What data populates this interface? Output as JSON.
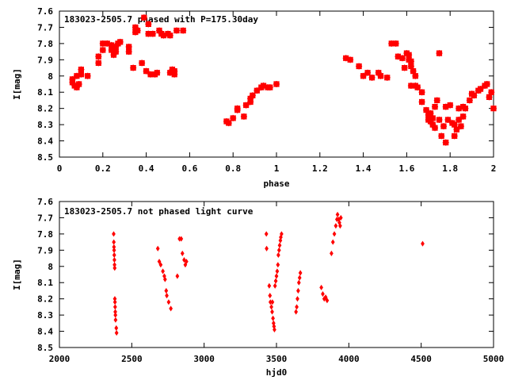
{
  "colors": {
    "points": "#ff0000",
    "axis": "#000000",
    "background": "#ffffff"
  },
  "chart_data": [
    {
      "type": "scatter",
      "title": "183023-2505.7 phased with P=175.30day",
      "xlabel": "phase",
      "ylabel": "I[mag]",
      "xlim": [
        0,
        2
      ],
      "ylim": [
        8.5,
        7.6
      ],
      "y_inverted": true,
      "grid": false,
      "x_ticks": [
        0,
        0.2,
        0.4,
        0.6,
        0.8,
        1,
        1.2,
        1.4,
        1.6,
        1.8,
        2
      ],
      "x_tick_labels": [
        "0",
        "0.2",
        "0.4",
        "0.6",
        "0.8",
        "1",
        "1.2",
        "1.4",
        "1.6",
        "1.8",
        "2"
      ],
      "y_ticks": [
        7.6,
        7.7,
        7.8,
        7.9,
        8,
        8.1,
        8.2,
        8.3,
        8.4,
        8.5
      ],
      "y_tick_labels": [
        "7.6",
        "7.7",
        "7.8",
        "7.9",
        "8",
        "8.1",
        "8.2",
        "8.3",
        "8.4",
        "8.5"
      ],
      "marker": "star",
      "points": [
        [
          0.06,
          8.02
        ],
        [
          0.06,
          8.04
        ],
        [
          0.07,
          8.06
        ],
        [
          0.08,
          8.0
        ],
        [
          0.08,
          8.07
        ],
        [
          0.09,
          8.05
        ],
        [
          0.1,
          7.99
        ],
        [
          0.1,
          7.96
        ],
        [
          0.13,
          8.0
        ],
        [
          0.18,
          7.88
        ],
        [
          0.18,
          7.92
        ],
        [
          0.2,
          7.84
        ],
        [
          0.2,
          7.8
        ],
        [
          0.22,
          7.8
        ],
        [
          0.24,
          7.81
        ],
        [
          0.24,
          7.84
        ],
        [
          0.25,
          7.87
        ],
        [
          0.25,
          7.83
        ],
        [
          0.25,
          7.82
        ],
        [
          0.26,
          7.85
        ],
        [
          0.26,
          7.82
        ],
        [
          0.27,
          7.8
        ],
        [
          0.28,
          7.79
        ],
        [
          0.32,
          7.82
        ],
        [
          0.32,
          7.85
        ],
        [
          0.34,
          7.95
        ],
        [
          0.35,
          7.73
        ],
        [
          0.35,
          7.7
        ],
        [
          0.36,
          7.72
        ],
        [
          0.38,
          7.92
        ],
        [
          0.39,
          7.64
        ],
        [
          0.4,
          7.97
        ],
        [
          0.41,
          7.68
        ],
        [
          0.41,
          7.74
        ],
        [
          0.42,
          7.99
        ],
        [
          0.43,
          7.74
        ],
        [
          0.44,
          7.99
        ],
        [
          0.45,
          7.98
        ],
        [
          0.46,
          7.72
        ],
        [
          0.47,
          7.74
        ],
        [
          0.48,
          7.75
        ],
        [
          0.5,
          7.74
        ],
        [
          0.51,
          7.98
        ],
        [
          0.51,
          7.75
        ],
        [
          0.52,
          7.96
        ],
        [
          0.53,
          7.99
        ],
        [
          0.53,
          7.97
        ],
        [
          0.54,
          7.72
        ],
        [
          0.57,
          7.72
        ],
        [
          0.77,
          8.28
        ],
        [
          0.78,
          8.29
        ],
        [
          0.8,
          8.26
        ],
        [
          0.82,
          8.21
        ],
        [
          0.82,
          8.2
        ],
        [
          0.85,
          8.25
        ],
        [
          0.86,
          8.18
        ],
        [
          0.88,
          8.16
        ],
        [
          0.88,
          8.14
        ],
        [
          0.89,
          8.12
        ],
        [
          0.91,
          8.09
        ],
        [
          0.93,
          8.07
        ],
        [
          0.94,
          8.06
        ],
        [
          0.96,
          8.07
        ],
        [
          0.97,
          8.07
        ],
        [
          1.0,
          8.05
        ],
        [
          1.32,
          7.89
        ],
        [
          1.34,
          7.9
        ],
        [
          1.38,
          7.94
        ],
        [
          1.4,
          8.0
        ],
        [
          1.42,
          7.98
        ],
        [
          1.44,
          8.01
        ],
        [
          1.47,
          7.98
        ],
        [
          1.48,
          8.0
        ],
        [
          1.51,
          8.01
        ],
        [
          1.53,
          7.8
        ],
        [
          1.55,
          7.8
        ],
        [
          1.56,
          7.88
        ],
        [
          1.58,
          7.89
        ],
        [
          1.59,
          7.95
        ],
        [
          1.6,
          7.86
        ],
        [
          1.61,
          7.87
        ],
        [
          1.61,
          7.9
        ],
        [
          1.62,
          7.91
        ],
        [
          1.62,
          7.94
        ],
        [
          1.63,
          7.97
        ],
        [
          1.64,
          8.0
        ],
        [
          1.64,
          8.06
        ],
        [
          1.62,
          8.06
        ],
        [
          1.65,
          8.07
        ],
        [
          1.67,
          8.1
        ],
        [
          1.67,
          8.16
        ],
        [
          1.69,
          8.21
        ],
        [
          1.7,
          8.24
        ],
        [
          1.7,
          8.27
        ],
        [
          1.71,
          8.23
        ],
        [
          1.71,
          8.28
        ],
        [
          1.72,
          8.26
        ],
        [
          1.72,
          8.3
        ],
        [
          1.73,
          8.19
        ],
        [
          1.73,
          8.32
        ],
        [
          1.74,
          8.15
        ],
        [
          1.75,
          8.27
        ],
        [
          1.75,
          7.86
        ],
        [
          1.76,
          8.37
        ],
        [
          1.77,
          8.31
        ],
        [
          1.78,
          8.41
        ],
        [
          1.78,
          8.19
        ],
        [
          1.79,
          8.27
        ],
        [
          1.8,
          8.18
        ],
        [
          1.81,
          8.29
        ],
        [
          1.82,
          8.3
        ],
        [
          1.82,
          8.37
        ],
        [
          1.83,
          8.33
        ],
        [
          1.84,
          8.27
        ],
        [
          1.84,
          8.2
        ],
        [
          1.85,
          8.31
        ],
        [
          1.86,
          8.25
        ],
        [
          1.86,
          8.19
        ],
        [
          1.87,
          8.2
        ],
        [
          1.89,
          8.15
        ],
        [
          1.9,
          8.11
        ],
        [
          1.91,
          8.12
        ],
        [
          1.93,
          8.09
        ],
        [
          1.94,
          8.08
        ],
        [
          1.96,
          8.06
        ],
        [
          1.97,
          8.05
        ],
        [
          1.98,
          8.13
        ],
        [
          1.99,
          8.1
        ],
        [
          2.0,
          8.2
        ]
      ]
    },
    {
      "type": "scatter",
      "title": "183023-2505.7 not phased light curve",
      "xlabel": "hjd0",
      "ylabel": "I[mag]",
      "xlim": [
        2000,
        5000
      ],
      "ylim": [
        8.5,
        7.6
      ],
      "y_inverted": true,
      "grid": false,
      "x_ticks": [
        2000,
        2500,
        3000,
        3500,
        4000,
        4500,
        5000
      ],
      "x_tick_labels": [
        "2000",
        "2500",
        "3000",
        "3500",
        "4000",
        "4500",
        "5000"
      ],
      "y_ticks": [
        7.6,
        7.7,
        7.8,
        7.9,
        8,
        8.1,
        8.2,
        8.3,
        8.4,
        8.5
      ],
      "y_tick_labels": [
        "7.6",
        "7.7",
        "7.8",
        "7.9",
        "8",
        "8.1",
        "8.2",
        "8.3",
        "8.4",
        "8.5"
      ],
      "marker": "diamond",
      "points": [
        [
          2375,
          7.8
        ],
        [
          2376,
          7.85
        ],
        [
          2377,
          7.88
        ],
        [
          2378,
          7.9
        ],
        [
          2379,
          7.93
        ],
        [
          2380,
          7.96
        ],
        [
          2381,
          7.99
        ],
        [
          2382,
          8.01
        ],
        [
          2383,
          8.2
        ],
        [
          2384,
          8.22
        ],
        [
          2385,
          8.25
        ],
        [
          2386,
          8.28
        ],
        [
          2387,
          8.3
        ],
        [
          2388,
          8.33
        ],
        [
          2393,
          8.38
        ],
        [
          2395,
          8.41
        ],
        [
          2680,
          7.89
        ],
        [
          2690,
          7.97
        ],
        [
          2700,
          7.99
        ],
        [
          2715,
          8.03
        ],
        [
          2725,
          8.06
        ],
        [
          2730,
          8.08
        ],
        [
          2738,
          8.15
        ],
        [
          2742,
          8.18
        ],
        [
          2755,
          8.22
        ],
        [
          2770,
          8.26
        ],
        [
          2815,
          8.06
        ],
        [
          2830,
          7.83
        ],
        [
          2842,
          7.83
        ],
        [
          2850,
          7.92
        ],
        [
          2862,
          7.96
        ],
        [
          2870,
          7.99
        ],
        [
          2878,
          7.97
        ],
        [
          3430,
          7.8
        ],
        [
          3432,
          7.89
        ],
        [
          3450,
          8.12
        ],
        [
          3455,
          8.18
        ],
        [
          3458,
          8.22
        ],
        [
          3465,
          8.25
        ],
        [
          3470,
          8.28
        ],
        [
          3472,
          8.22
        ],
        [
          3476,
          8.32
        ],
        [
          3480,
          8.35
        ],
        [
          3483,
          8.37
        ],
        [
          3486,
          8.39
        ],
        [
          3490,
          8.12
        ],
        [
          3495,
          8.09
        ],
        [
          3500,
          8.06
        ],
        [
          3505,
          8.03
        ],
        [
          3510,
          7.99
        ],
        [
          3513,
          7.93
        ],
        [
          3518,
          7.9
        ],
        [
          3522,
          7.87
        ],
        [
          3527,
          7.84
        ],
        [
          3530,
          7.82
        ],
        [
          3535,
          7.8
        ],
        [
          3635,
          8.28
        ],
        [
          3640,
          8.25
        ],
        [
          3645,
          8.2
        ],
        [
          3650,
          8.15
        ],
        [
          3655,
          8.1
        ],
        [
          3660,
          8.07
        ],
        [
          3665,
          8.04
        ],
        [
          3810,
          8.13
        ],
        [
          3820,
          8.17
        ],
        [
          3830,
          8.2
        ],
        [
          3840,
          8.19
        ],
        [
          3850,
          8.21
        ],
        [
          3880,
          7.92
        ],
        [
          3890,
          7.85
        ],
        [
          3900,
          7.8
        ],
        [
          3910,
          7.75
        ],
        [
          3918,
          7.71
        ],
        [
          3922,
          7.68
        ],
        [
          3930,
          7.71
        ],
        [
          3935,
          7.73
        ],
        [
          3940,
          7.75
        ],
        [
          3945,
          7.7
        ],
        [
          4510,
          7.86
        ]
      ]
    }
  ]
}
